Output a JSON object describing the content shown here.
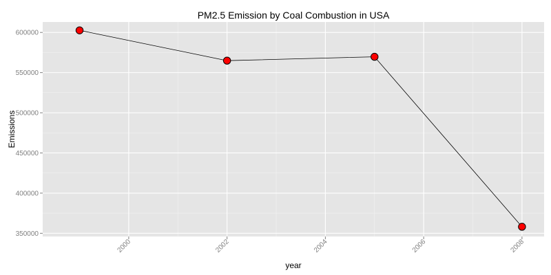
{
  "chart_data": {
    "type": "line",
    "title": "PM2.5 Emission by Coal Combustion in USA",
    "xlabel": "year",
    "ylabel": "Emissions",
    "x": [
      1999,
      2002,
      2005,
      2008
    ],
    "y": [
      602600,
      564900,
      569700,
      358100
    ],
    "xlim": [
      1998.25,
      2008.45
    ],
    "ylim": [
      346000,
      613000
    ],
    "xticks": [
      2000,
      2002,
      2004,
      2006,
      2008
    ],
    "xtick_labels": [
      "2000",
      "2002",
      "2004",
      "2006",
      "2008"
    ],
    "yticks": [
      350000,
      400000,
      450000,
      500000,
      550000,
      600000
    ],
    "ytick_labels": [
      "350000",
      "400000",
      "450000",
      "500000",
      "550000",
      "600000"
    ],
    "grid": true,
    "legend": "none",
    "panel_color": "#e5e5e5",
    "grid_color": "#ffffff",
    "line_color": "#000000",
    "point_fill": "#ff0000",
    "point_stroke": "#000000"
  }
}
